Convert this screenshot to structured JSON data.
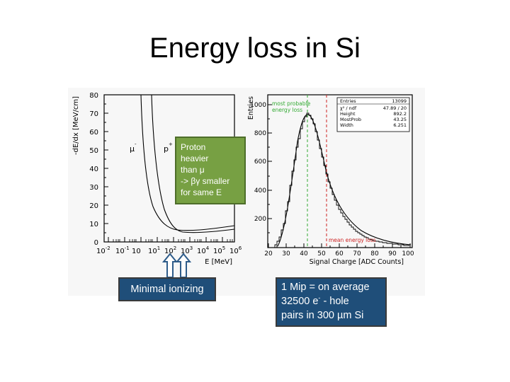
{
  "slide": {
    "title": "Energy loss in Si"
  },
  "left_plot": {
    "y_ticks": [
      "80",
      "70",
      "60",
      "50",
      "40",
      "30",
      "20",
      "10",
      "0"
    ],
    "y_axis_label": "-dE/dx [MeV/cm]",
    "x_tick_bases": [
      "10",
      "10",
      "10",
      "10",
      "10",
      "10",
      "10",
      "10",
      "10"
    ],
    "x_tick_exponents": [
      "-2",
      "-1",
      "",
      "1",
      "2",
      "3",
      "4",
      "5",
      "6"
    ],
    "x_axis_label": "E [MeV]",
    "curve_labels": [
      "μ",
      "p"
    ]
  },
  "right_plot": {
    "y_axis_label": "Entries",
    "y_ticks": [
      "1000",
      "800",
      "600",
      "400",
      "200"
    ],
    "x_ticks": [
      "20",
      "30",
      "40",
      "50",
      "60",
      "70",
      "80",
      "90",
      "100"
    ],
    "x_axis_label": "Signal Charge [ADC Counts]",
    "mpv_label_line1": "most probable",
    "mpv_label_line2": "energy loss",
    "mean_label": "mean energy loss",
    "stats": {
      "header_left": "Entries",
      "header_right": "13099",
      "rows": [
        {
          "name": "χ² / ndf",
          "value": "47.89  /  20"
        },
        {
          "name": "Height",
          "value": "892.2"
        },
        {
          "name": "MostProb",
          "value": "43.25"
        },
        {
          "name": "Width",
          "value": "6.251"
        }
      ]
    }
  },
  "callouts": {
    "proton_lines": [
      "Proton",
      "heavier",
      "than μ",
      "-> βγ smaller",
      " for same E"
    ],
    "minimal_ionizing": "Minimal ionizing",
    "mip_line1": "1 Mip = on average",
    "mip_line2_pre": "32500 e",
    "mip_line2_sup": "-",
    "mip_line2_post": " - hole",
    "mip_line3": "pairs in 300 µm Si"
  },
  "colors": {
    "callout_green": "#77a043",
    "callout_blue": "#1f4e79",
    "arrow_blue": "#2e5c8a",
    "mpv_green": "#33aa33",
    "mean_red": "#cc2222"
  }
}
